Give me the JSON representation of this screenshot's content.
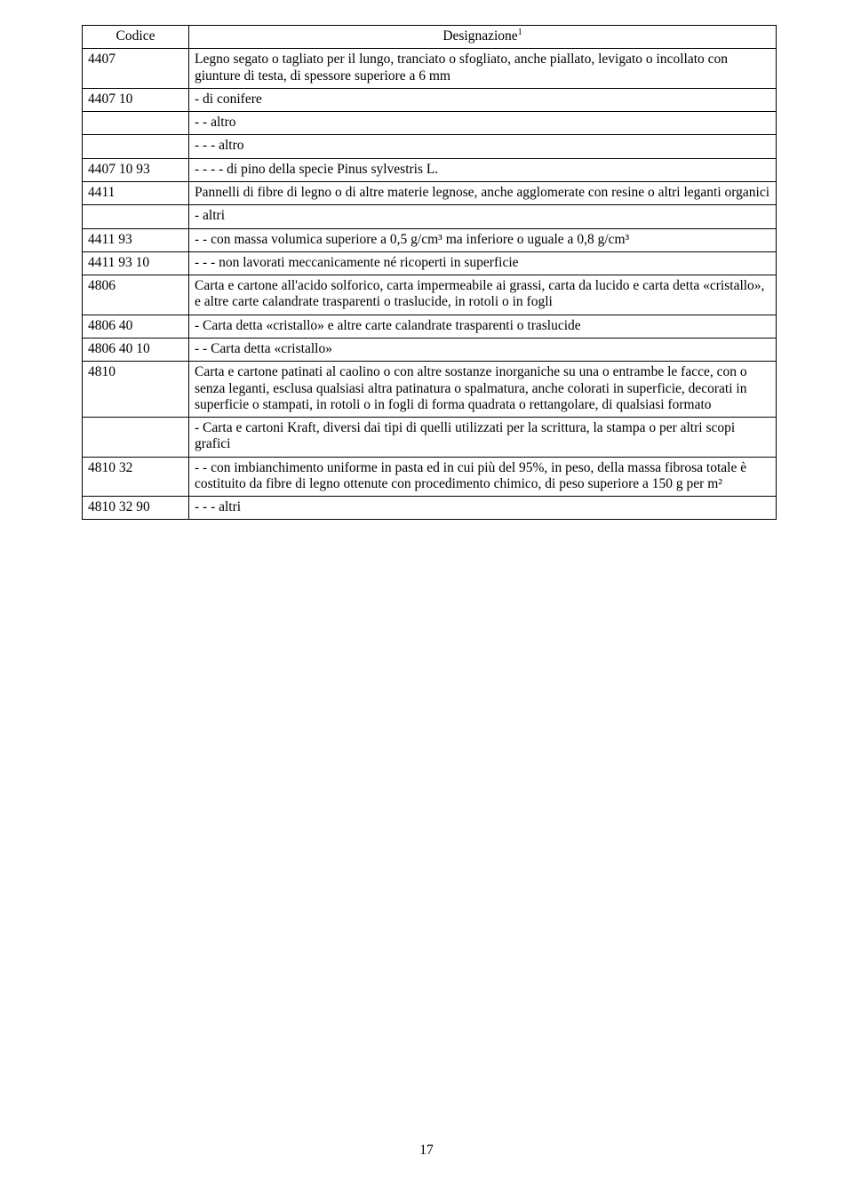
{
  "table": {
    "headers": {
      "code": "Codice",
      "designation": "Designazione",
      "designation_sup": "1"
    },
    "rows": [
      {
        "code": "4407",
        "desc": "Legno segato o tagliato per il lungo, tranciato o sfogliato, anche piallato, levigato o incollato con giunture di testa, di spessore superiore a 6 mm"
      },
      {
        "code": "4407 10",
        "desc": "- di conifere"
      },
      {
        "code": "",
        "desc": "- - altro"
      },
      {
        "code": "",
        "desc": "- - - altro"
      },
      {
        "code": "4407 10 93",
        "desc": "- - - - di pino della specie Pinus sylvestris L."
      },
      {
        "code": "4411",
        "desc": "Pannelli di fibre di legno o di altre materie legnose, anche agglomerate con resine o altri leganti organici"
      },
      {
        "code": "",
        "desc": "- altri"
      },
      {
        "code": "4411 93",
        "desc": "- - con massa volumica superiore a 0,5 g/cm³ ma inferiore o uguale a 0,8 g/cm³"
      },
      {
        "code": "4411 93 10",
        "desc": "- - - non lavorati meccanicamente né ricoperti in superficie"
      },
      {
        "code": "4806",
        "desc": "Carta e cartone all'acido solforico, carta impermeabile ai grassi, carta da lucido e carta detta «cristallo», e altre carte calandrate trasparenti o traslucide, in rotoli o in fogli"
      },
      {
        "code": "4806 40",
        "desc": "- Carta detta «cristallo» e altre carte calandrate trasparenti o traslucide"
      },
      {
        "code": "4806 40 10",
        "desc": "- - Carta detta «cristallo»"
      },
      {
        "code": "4810",
        "desc": "Carta e cartone patinati al caolino o con altre sostanze inorganiche su una o entrambe le facce, con o senza leganti, esclusa qualsiasi altra patinatura o spalmatura, anche colorati in superficie, decorati in superficie o stampati, in rotoli o in fogli di forma quadrata o rettangolare, di qualsiasi formato"
      },
      {
        "code": "",
        "desc": "- Carta e cartoni Kraft, diversi dai tipi di quelli utilizzati per la scrittura, la stampa o per altri scopi grafici"
      },
      {
        "code": "4810 32",
        "desc": "- - con imbianchimento uniforme in pasta ed in cui più del 95%, in peso, della massa fibrosa totale è costituito da fibre di legno ottenute con procedimento chimico, di peso superiore a 150 g per m²"
      },
      {
        "code": "4810 32 90",
        "desc": "- - - altri"
      }
    ]
  },
  "page_number": "17"
}
